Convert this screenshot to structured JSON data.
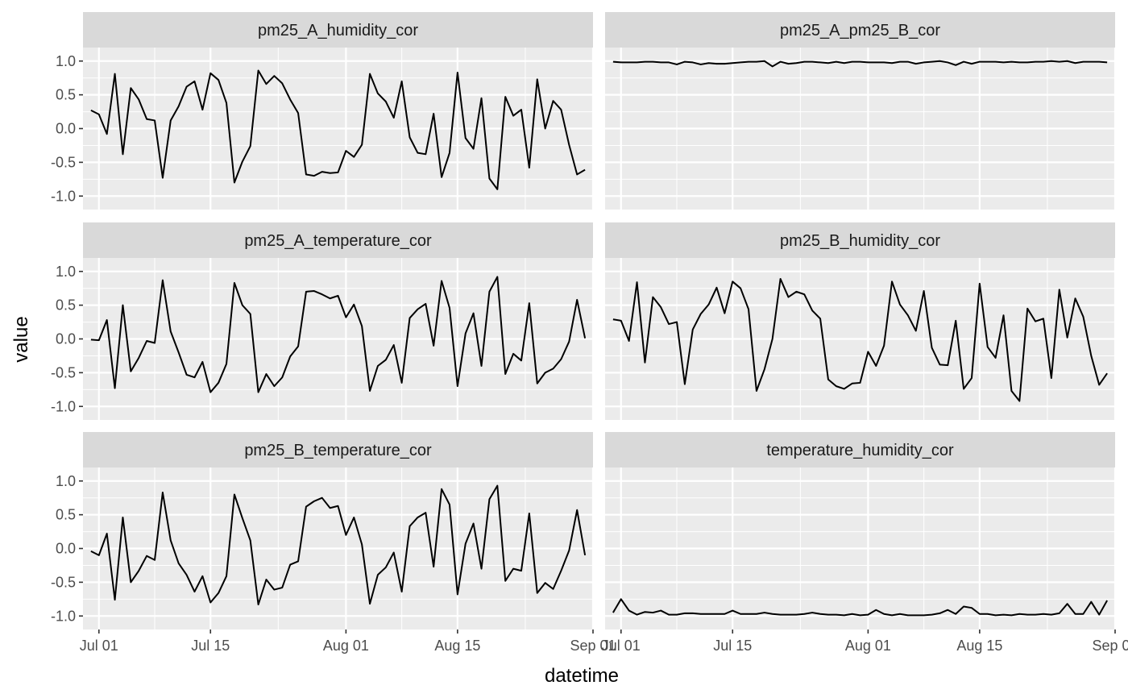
{
  "chart_data": {
    "type": "line",
    "xlabel": "datetime",
    "ylabel": "value",
    "ylim": [
      -1.2,
      1.2
    ],
    "xlim": [
      "2021-06-29",
      "2021-09-01"
    ],
    "x_ticks": [
      {
        "date": "2021-07-01",
        "label": "Jul 01"
      },
      {
        "date": "2021-07-15",
        "label": "Jul 15"
      },
      {
        "date": "2021-08-01",
        "label": "Aug 01"
      },
      {
        "date": "2021-08-15",
        "label": "Aug 15"
      },
      {
        "date": "2021-09-01",
        "label": "Sep 01"
      }
    ],
    "y_ticks": [
      {
        "value": 1.0,
        "label": "1.0"
      },
      {
        "value": 0.5,
        "label": "0.5"
      },
      {
        "value": 0.0,
        "label": "0.0"
      },
      {
        "value": -0.5,
        "label": "-0.5"
      },
      {
        "value": -1.0,
        "label": "-1.0"
      }
    ],
    "grid": true,
    "line_color": "#000000",
    "panel_bg": "#ebebeb",
    "strip_bg": "#d9d9d9",
    "x_start": "2021-06-30",
    "x_end": "2021-08-31",
    "panels": [
      {
        "name": "pm25_A_humidity_cor",
        "values": [
          0.27,
          0.21,
          -0.08,
          0.81,
          -0.38,
          0.6,
          0.43,
          0.14,
          0.12,
          -0.73,
          0.12,
          0.33,
          0.62,
          0.7,
          0.28,
          0.82,
          0.72,
          0.38,
          -0.8,
          -0.49,
          -0.26,
          0.86,
          0.66,
          0.78,
          0.67,
          0.43,
          0.23,
          -0.68,
          -0.7,
          -0.64,
          -0.66,
          -0.65,
          -0.33,
          -0.42,
          -0.24,
          0.81,
          0.52,
          0.4,
          0.16,
          0.7,
          -0.13,
          -0.36,
          -0.38,
          0.22,
          -0.72,
          -0.36,
          0.83,
          -0.14,
          -0.3,
          0.45,
          -0.74,
          -0.9,
          0.47,
          0.19,
          0.28,
          -0.58,
          0.73,
          0.0,
          0.41,
          0.28,
          -0.24,
          -0.68,
          -0.61
        ]
      },
      {
        "name": "pm25_A_pm25_B_cor",
        "values": [
          0.99,
          0.98,
          0.98,
          0.98,
          0.99,
          0.99,
          0.98,
          0.98,
          0.95,
          0.99,
          0.98,
          0.95,
          0.97,
          0.96,
          0.96,
          0.97,
          0.98,
          0.99,
          0.99,
          1.0,
          0.92,
          0.99,
          0.96,
          0.97,
          0.99,
          0.99,
          0.98,
          0.97,
          0.99,
          0.97,
          0.99,
          0.99,
          0.98,
          0.98,
          0.98,
          0.97,
          0.99,
          0.99,
          0.96,
          0.98,
          0.99,
          1.0,
          0.98,
          0.94,
          0.99,
          0.96,
          0.99,
          0.99,
          0.99,
          0.98,
          0.99,
          0.98,
          0.98,
          0.99,
          0.99,
          1.0,
          0.99,
          1.0,
          0.97,
          0.99,
          0.99,
          0.99,
          0.98
        ]
      },
      {
        "name": "pm25_A_temperature_cor",
        "values": [
          -0.01,
          -0.02,
          0.28,
          -0.73,
          0.5,
          -0.48,
          -0.28,
          -0.03,
          -0.06,
          0.87,
          0.11,
          -0.2,
          -0.53,
          -0.57,
          -0.34,
          -0.79,
          -0.65,
          -0.37,
          0.83,
          0.5,
          0.37,
          -0.79,
          -0.52,
          -0.7,
          -0.57,
          -0.26,
          -0.11,
          0.7,
          0.71,
          0.66,
          0.6,
          0.64,
          0.32,
          0.51,
          0.19,
          -0.77,
          -0.4,
          -0.31,
          -0.09,
          -0.65,
          0.31,
          0.44,
          0.52,
          -0.1,
          0.86,
          0.46,
          -0.7,
          0.08,
          0.38,
          -0.4,
          0.7,
          0.92,
          -0.52,
          -0.22,
          -0.32,
          0.53,
          -0.66,
          -0.5,
          -0.44,
          -0.3,
          -0.04,
          0.58,
          0.01
        ]
      },
      {
        "name": "pm25_B_humidity_cor",
        "values": [
          0.29,
          0.27,
          -0.03,
          0.84,
          -0.35,
          0.62,
          0.47,
          0.22,
          0.25,
          -0.67,
          0.14,
          0.37,
          0.51,
          0.76,
          0.38,
          0.85,
          0.75,
          0.44,
          -0.77,
          -0.45,
          0.0,
          0.89,
          0.62,
          0.7,
          0.66,
          0.42,
          0.3,
          -0.6,
          -0.7,
          -0.74,
          -0.66,
          -0.65,
          -0.19,
          -0.4,
          -0.1,
          0.85,
          0.51,
          0.35,
          0.12,
          0.71,
          -0.13,
          -0.38,
          -0.39,
          0.27,
          -0.74,
          -0.58,
          0.82,
          -0.12,
          -0.28,
          0.35,
          -0.77,
          -0.92,
          0.45,
          0.26,
          0.3,
          -0.58,
          0.73,
          0.02,
          0.6,
          0.33,
          -0.25,
          -0.68,
          -0.51
        ]
      },
      {
        "name": "pm25_B_temperature_cor",
        "values": [
          -0.04,
          -0.1,
          0.22,
          -0.76,
          0.46,
          -0.5,
          -0.33,
          -0.11,
          -0.17,
          0.83,
          0.12,
          -0.22,
          -0.39,
          -0.64,
          -0.41,
          -0.8,
          -0.66,
          -0.41,
          0.8,
          0.45,
          0.12,
          -0.83,
          -0.46,
          -0.61,
          -0.58,
          -0.24,
          -0.19,
          0.62,
          0.7,
          0.75,
          0.6,
          0.63,
          0.2,
          0.46,
          0.06,
          -0.82,
          -0.39,
          -0.28,
          -0.06,
          -0.64,
          0.33,
          0.46,
          0.53,
          -0.27,
          0.88,
          0.65,
          -0.68,
          0.07,
          0.37,
          -0.3,
          0.73,
          0.93,
          -0.48,
          -0.3,
          -0.33,
          0.52,
          -0.66,
          -0.51,
          -0.6,
          -0.33,
          -0.03,
          0.57,
          -0.1
        ]
      },
      {
        "name": "temperature_humidity_cor",
        "values": [
          -0.95,
          -0.75,
          -0.92,
          -0.98,
          -0.94,
          -0.95,
          -0.92,
          -0.98,
          -0.98,
          -0.96,
          -0.96,
          -0.97,
          -0.97,
          -0.97,
          -0.97,
          -0.92,
          -0.97,
          -0.97,
          -0.97,
          -0.95,
          -0.97,
          -0.98,
          -0.98,
          -0.98,
          -0.97,
          -0.95,
          -0.97,
          -0.98,
          -0.98,
          -0.99,
          -0.97,
          -0.99,
          -0.98,
          -0.91,
          -0.97,
          -0.99,
          -0.97,
          -0.99,
          -0.99,
          -0.99,
          -0.98,
          -0.96,
          -0.91,
          -0.97,
          -0.86,
          -0.88,
          -0.97,
          -0.97,
          -0.99,
          -0.98,
          -0.99,
          -0.97,
          -0.98,
          -0.98,
          -0.97,
          -0.98,
          -0.96,
          -0.82,
          -0.97,
          -0.97,
          -0.79,
          -0.98,
          -0.77
        ]
      }
    ]
  }
}
